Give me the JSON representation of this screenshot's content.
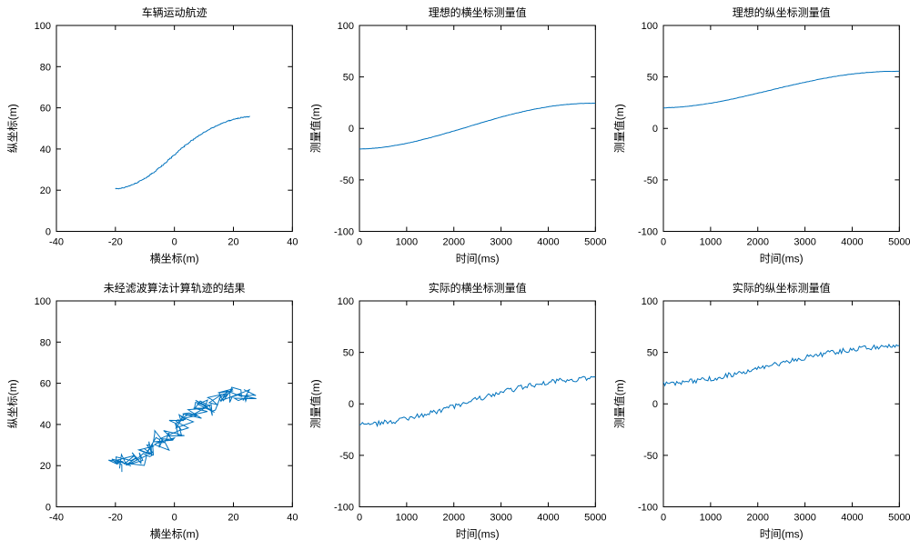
{
  "global": {
    "background_color": "#ffffff",
    "line_color": "#0072bd",
    "axis_color": "#000000",
    "title_fontsize": 12,
    "label_fontsize": 12,
    "tick_fontsize": 11
  },
  "panels": [
    {
      "id": "p11",
      "title": "车辆运动航迹",
      "xlabel": "横坐标(m)",
      "ylabel": "纵坐标(m)",
      "xlim": [
        -40,
        40
      ],
      "ylim": [
        0,
        100
      ],
      "xticks": [
        -40,
        -20,
        0,
        20,
        40
      ],
      "yticks": [
        0,
        20,
        40,
        60,
        80,
        100
      ],
      "series": {
        "kind": "smooth_traj",
        "x_start": -20,
        "x_end": 25,
        "y_start": 20,
        "y_end": 56,
        "noise": 0.4
      }
    },
    {
      "id": "p12",
      "title": "理想的横坐标测量值",
      "xlabel": "时间(ms)",
      "ylabel": "测量值(m)",
      "xlim": [
        0,
        5000
      ],
      "ylim": [
        -100,
        100
      ],
      "xticks": [
        0,
        1000,
        2000,
        3000,
        4000,
        5000
      ],
      "yticks": [
        -100,
        -50,
        0,
        50,
        100
      ],
      "series": {
        "kind": "smooth_time",
        "y_start": -20,
        "y_end": 25,
        "noise": 0.3
      }
    },
    {
      "id": "p13",
      "title": "理想的纵坐标测量值",
      "xlabel": "时间(ms)",
      "ylabel": "测量值(m)",
      "xlim": [
        0,
        5000
      ],
      "ylim": [
        -100,
        100
      ],
      "xticks": [
        0,
        1000,
        2000,
        3000,
        4000,
        5000
      ],
      "yticks": [
        -100,
        -50,
        0,
        50,
        100
      ],
      "series": {
        "kind": "smooth_time",
        "y_start": 20,
        "y_end": 56,
        "noise": 0.3
      }
    },
    {
      "id": "p21",
      "title": "未经滤波算法计算轨迹的结果",
      "xlabel": "横坐标(m)",
      "ylabel": "纵坐标(m)",
      "xlim": [
        -40,
        40
      ],
      "ylim": [
        0,
        100
      ],
      "xticks": [
        -40,
        -20,
        0,
        20,
        40
      ],
      "yticks": [
        0,
        20,
        40,
        60,
        80,
        100
      ],
      "series": {
        "kind": "noisy_traj",
        "x_start": -20,
        "x_end": 25,
        "y_start": 20,
        "y_end": 56,
        "noise": 4
      }
    },
    {
      "id": "p22",
      "title": "实际的横坐标测量值",
      "xlabel": "时间(ms)",
      "ylabel": "测量值(m)",
      "xlim": [
        0,
        5000
      ],
      "ylim": [
        -100,
        100
      ],
      "xticks": [
        0,
        1000,
        2000,
        3000,
        4000,
        5000
      ],
      "yticks": [
        -100,
        -50,
        0,
        50,
        100
      ],
      "series": {
        "kind": "noisy_time",
        "y_start": -20,
        "y_end": 25,
        "noise": 2.5
      }
    },
    {
      "id": "p23",
      "title": "实际的纵坐标测量值",
      "xlabel": "时间(ms)",
      "ylabel": "测量值(m)",
      "xlim": [
        0,
        5000
      ],
      "ylim": [
        -100,
        100
      ],
      "xticks": [
        0,
        1000,
        2000,
        3000,
        4000,
        5000
      ],
      "yticks": [
        -100,
        -50,
        0,
        50,
        100
      ],
      "series": {
        "kind": "noisy_time",
        "y_start": 20,
        "y_end": 56,
        "noise": 2.5
      }
    }
  ]
}
